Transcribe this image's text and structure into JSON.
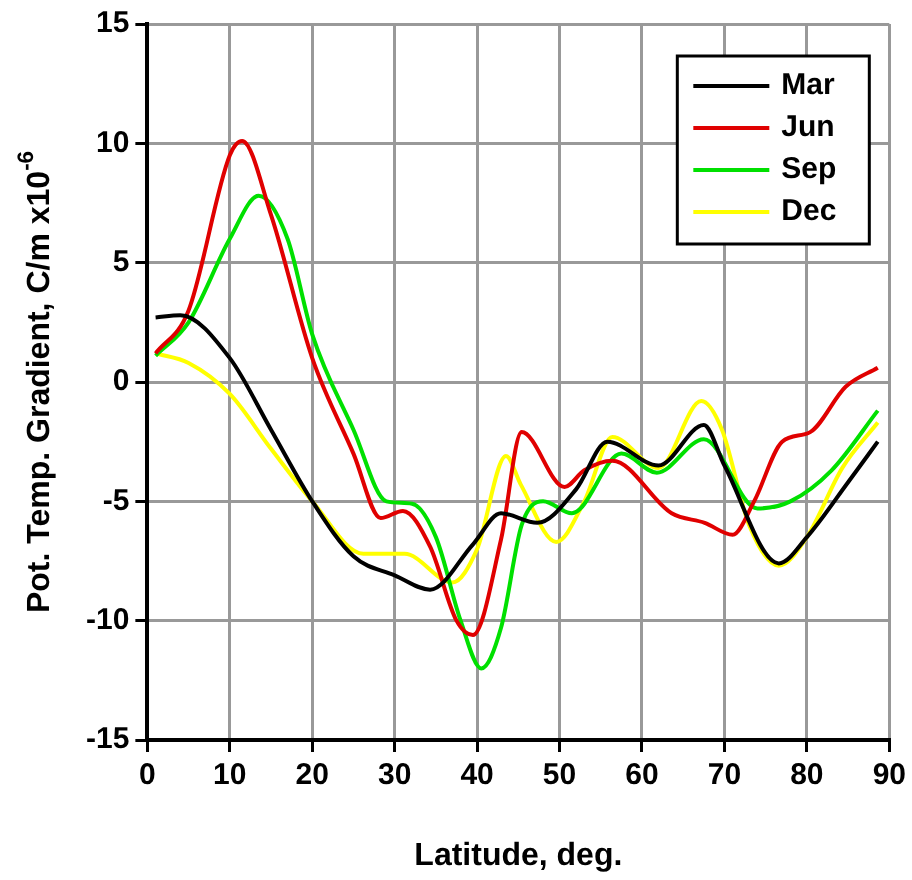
{
  "chart_data": {
    "type": "line",
    "xlabel": "Latitude, deg.",
    "ylabel": "Pot. Temp. Gradient, C/m x10$^{-6}$",
    "xlim": [
      0,
      90
    ],
    "xticks": [
      0,
      10,
      20,
      30,
      40,
      50,
      60,
      70,
      80,
      90
    ],
    "ylim": [
      -15,
      15
    ],
    "yticks": [
      -15,
      -10,
      -5,
      0,
      5,
      10,
      15
    ],
    "grid": true,
    "legend": "top right",
    "marker": "none",
    "line_style": "solid",
    "series": [
      {
        "name": "Mar",
        "color": "#000000",
        "x": [
          1,
          4,
          10,
          15,
          20,
          25,
          30,
          34.3,
          39.5,
          42.9,
          47.3,
          52,
          55.8,
          62,
          67.5,
          70,
          76.6,
          80,
          85,
          88.6
        ],
        "values": [
          2.7,
          2.8,
          1,
          -2,
          -5,
          -7.3,
          -8.1,
          -8.7,
          -6.8,
          -5.5,
          -5.9,
          -4.5,
          -2.5,
          -3.5,
          -1.8,
          -3.5,
          -7.6,
          -6.5,
          -4.2,
          -2.5
        ]
      },
      {
        "name": "Jun",
        "color": "#e00000",
        "x": [
          1,
          5,
          10,
          11.5,
          15,
          20,
          25,
          28.3,
          31,
          34.3,
          37.5,
          39.5,
          42.9,
          45.4,
          50.6,
          53,
          56.4,
          63.6,
          67.6,
          71,
          73.6,
          77,
          80.4,
          84.7,
          88.6
        ],
        "values": [
          1.2,
          3,
          9.5,
          10.1,
          7,
          1,
          -3,
          -5.7,
          -5.4,
          -6.9,
          -10,
          -10.6,
          -6.6,
          -2.1,
          -4.4,
          -3.7,
          -3.3,
          -5.5,
          -5.9,
          -6.4,
          -5,
          -2.5,
          -2.1,
          -0.2,
          0.6
        ]
      },
      {
        "name": "Sep",
        "color": "#00e000",
        "x": [
          1,
          5,
          10,
          13.5,
          17,
          20,
          25,
          29,
          32.1,
          35,
          38,
          40.5,
          42.9,
          45.4,
          48,
          51.5,
          57.5,
          61.8,
          67.5,
          74,
          78,
          83,
          88.6
        ],
        "values": [
          1.1,
          2.5,
          6,
          7.8,
          6,
          2,
          -2,
          -5,
          -5.1,
          -6.5,
          -10,
          -12,
          -10.3,
          -6,
          -5,
          -5.5,
          -3,
          -3.8,
          -2.4,
          -5.3,
          -5,
          -3.7,
          -1.2
        ]
      },
      {
        "name": "Dec",
        "color": "#ffff00",
        "x": [
          1,
          5,
          10,
          15,
          20,
          26.2,
          31.2,
          37,
          40,
          43.5,
          45.3,
          49.6,
          53,
          56.4,
          62,
          67.2,
          69.7,
          73,
          76.6,
          80,
          84.3,
          88.6
        ],
        "values": [
          1.2,
          0.8,
          -0.5,
          -2.8,
          -5,
          -7.2,
          -7.2,
          -8.4,
          -7,
          -3.1,
          -4.3,
          -6.7,
          -5,
          -2.3,
          -3.6,
          -0.8,
          -2,
          -6,
          -7.7,
          -6.5,
          -3.6,
          -1.7
        ]
      }
    ]
  }
}
